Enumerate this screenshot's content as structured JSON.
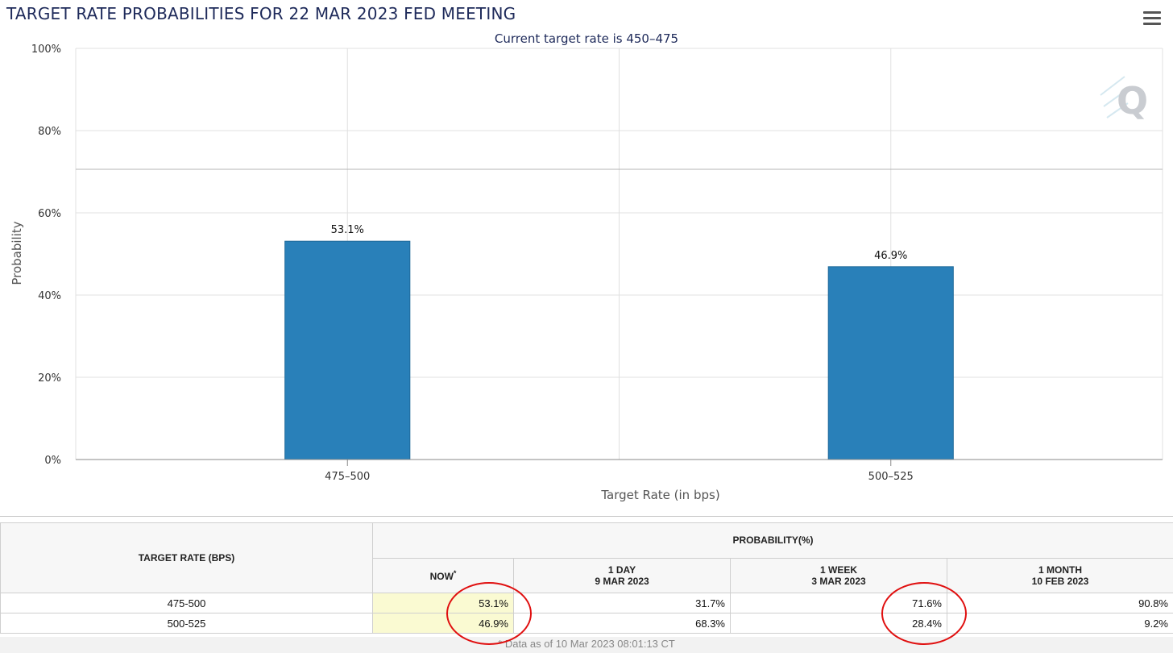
{
  "chart_data": {
    "type": "bar",
    "title": "TARGET RATE PROBABILITIES FOR 22 MAR 2023 FED MEETING",
    "subtitle": "Current target rate is 450–475",
    "categories": [
      "475–500",
      "500–525"
    ],
    "values": [
      53.1,
      46.9
    ],
    "data_labels": [
      "53.1%",
      "46.9%"
    ],
    "xlabel": "Target Rate (in bps)",
    "ylabel": "Probability",
    "ylim": [
      0,
      100
    ],
    "yticks": [
      "0%",
      "20%",
      "40%",
      "60%",
      "80%",
      "100%"
    ],
    "bar_color": "#2980b9",
    "grid": true
  },
  "watermark": "Q",
  "table": {
    "header_rate": "TARGET RATE (BPS)",
    "header_prob": "PROBABILITY(%)",
    "columns": [
      {
        "line1": "NOW",
        "line2": ""
      },
      {
        "line1": "1 DAY",
        "line2": "9 MAR 2023"
      },
      {
        "line1": "1 WEEK",
        "line2": "3 MAR 2023"
      },
      {
        "line1": "1 MONTH",
        "line2": "10 FEB 2023"
      }
    ],
    "now_marker": "*",
    "rows": [
      {
        "rate": "475-500",
        "now": "53.1%",
        "day": "31.7%",
        "week": "71.6%",
        "month": "90.8%"
      },
      {
        "rate": "500-525",
        "now": "46.9%",
        "day": "68.3%",
        "week": "28.4%",
        "month": "9.2%"
      }
    ]
  },
  "footnote": "* Data as of 10 Mar 2023 08:01:13 CT",
  "colors": {
    "title": "#1e2a5a",
    "bar": "#2980b9",
    "highlight": "#fafad2",
    "annotation": "#e01010"
  }
}
